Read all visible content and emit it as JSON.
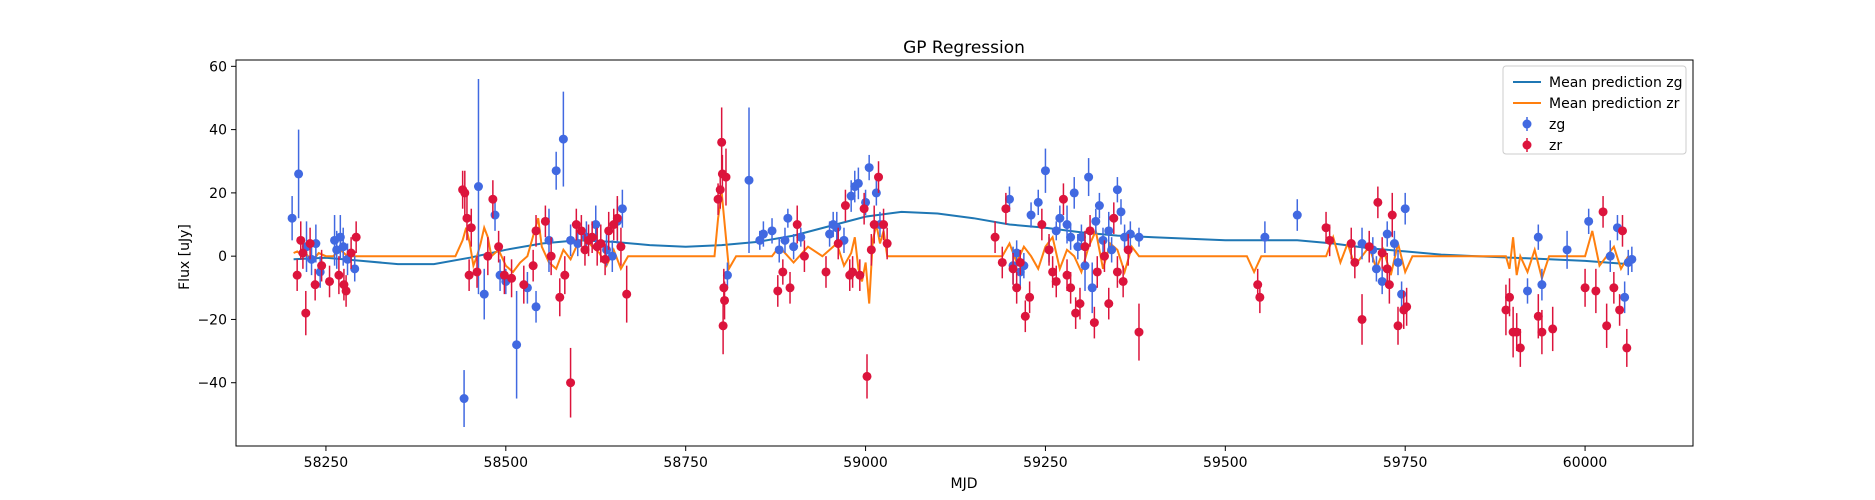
{
  "chart_data": {
    "type": "scatter",
    "title": "GP Regression",
    "xlabel": "MJD",
    "ylabel": "Flux [uJy]",
    "xlim": [
      58125,
      60150
    ],
    "ylim": [
      -60,
      62
    ],
    "xticks": [
      58250,
      58500,
      58750,
      59000,
      59250,
      59500,
      59750,
      60000
    ],
    "yticks": [
      -40,
      -20,
      0,
      20,
      40,
      60
    ],
    "grid": false,
    "legend_position": "top-right",
    "colors": {
      "zg_points": "#4169e1",
      "zr_points": "#dc143c",
      "zg_line": "#1f77b4",
      "zr_line": "#ff7f0e"
    },
    "legend": [
      {
        "label": "Mean prediction zg",
        "kind": "line",
        "color": "#1f77b4"
      },
      {
        "label": "Mean prediction zr",
        "kind": "line",
        "color": "#ff7f0e"
      },
      {
        "label": "zg",
        "kind": "point",
        "color": "#4169e1"
      },
      {
        "label": "zr",
        "kind": "point",
        "color": "#dc143c"
      }
    ],
    "series": [
      {
        "name": "Mean prediction zg",
        "kind": "line",
        "x": [
          58205,
          58250,
          58300,
          58350,
          58400,
          58450,
          58500,
          58550,
          58600,
          58650,
          58700,
          58750,
          58800,
          58850,
          58900,
          58950,
          59000,
          59050,
          59100,
          59150,
          59200,
          59250,
          59300,
          59350,
          59400,
          59450,
          59500,
          59550,
          59600,
          59650,
          59700,
          59750,
          59800,
          59850,
          59900,
          59950,
          60000,
          60060
        ],
        "y": [
          -1,
          -0.5,
          -1.5,
          -2.5,
          -2.5,
          -0.5,
          2,
          4,
          5,
          4.5,
          3.5,
          3,
          3.5,
          4.5,
          6.5,
          9.5,
          12.5,
          14,
          13.5,
          12,
          10,
          9,
          7.5,
          6.5,
          6,
          5.5,
          5,
          5,
          5,
          4,
          2.5,
          1.5,
          0.5,
          0,
          -0.5,
          -1,
          -1.5,
          -2.5
        ]
      },
      {
        "name": "Mean prediction zr",
        "kind": "line",
        "x": [
          58205,
          58210,
          58215,
          58220,
          58225,
          58230,
          58240,
          58250,
          58260,
          58270,
          58280,
          58290,
          58300,
          58350,
          58400,
          58430,
          58440,
          58445,
          58450,
          58455,
          58460,
          58465,
          58470,
          58475,
          58480,
          58490,
          58500,
          58510,
          58520,
          58530,
          58540,
          58545,
          58550,
          58560,
          58570,
          58580,
          58590,
          58600,
          58610,
          58620,
          58630,
          58640,
          58650,
          58660,
          58670,
          58700,
          58750,
          58790,
          58795,
          58800,
          58805,
          58810,
          58815,
          58820,
          58850,
          58870,
          58880,
          58900,
          58920,
          58940,
          58960,
          58970,
          58980,
          58985,
          58990,
          58995,
          59000,
          59005,
          59010,
          59015,
          59020,
          59025,
          59030,
          59040,
          59100,
          59150,
          59190,
          59200,
          59210,
          59220,
          59230,
          59240,
          59250,
          59260,
          59270,
          59280,
          59290,
          59300,
          59310,
          59320,
          59330,
          59340,
          59350,
          59360,
          59370,
          59380,
          59400,
          59500,
          59530,
          59540,
          59550,
          59600,
          59640,
          59650,
          59660,
          59670,
          59680,
          59690,
          59700,
          59710,
          59720,
          59730,
          59740,
          59750,
          59760,
          59800,
          59880,
          59890,
          59895,
          59900,
          59905,
          59910,
          59920,
          59930,
          59940,
          59950,
          59960,
          60000,
          60010,
          60020,
          60030,
          60040,
          60050,
          60060
        ],
        "y": [
          1,
          1.5,
          0.5,
          1.5,
          0,
          -2,
          1,
          0,
          0,
          2,
          0,
          0,
          0,
          0,
          0,
          0,
          5,
          9,
          4,
          -3,
          0,
          4,
          9,
          6,
          0,
          2,
          -3,
          -5,
          -2,
          0,
          8,
          12,
          3,
          -2,
          -4,
          2,
          -1,
          4,
          6,
          3,
          1,
          -3,
          2,
          -4,
          0,
          0,
          0,
          0,
          12,
          20,
          8,
          -4,
          -2,
          0,
          0,
          0,
          3,
          -2,
          3,
          0,
          4,
          -3,
          1,
          6,
          -4,
          -8,
          -2,
          -15,
          5,
          10,
          4,
          8,
          0,
          0,
          0,
          0,
          0,
          4,
          -2,
          3,
          0,
          -4,
          3,
          6,
          -4,
          2,
          0,
          -5,
          3,
          8,
          -4,
          4,
          2,
          -5,
          3,
          0,
          0,
          0,
          0,
          -5,
          0,
          0,
          0,
          6,
          -2,
          4,
          -3,
          0,
          3,
          -4,
          2,
          -6,
          4,
          -5,
          0,
          0,
          0,
          0,
          -4,
          6,
          -6,
          0,
          -5,
          2,
          -7,
          0,
          0,
          0,
          8,
          -3,
          0,
          3,
          -4,
          0
        ]
      },
      {
        "name": "zg",
        "kind": "point",
        "x": [
          58203,
          58212,
          58223,
          58230,
          58236,
          58242,
          58262,
          58265,
          58270,
          58274,
          58280,
          58290,
          58442,
          58462,
          58470,
          58485,
          58492,
          58500,
          58515,
          58530,
          58542,
          58560,
          58570,
          58580,
          58590,
          58600,
          58612,
          58625,
          58640,
          58648,
          58655,
          58662,
          58808,
          58838,
          58853,
          58858,
          58870,
          58880,
          58888,
          58892,
          58900,
          58910,
          58950,
          58955,
          58960,
          58970,
          58980,
          58985,
          58990,
          59000,
          59005,
          59015,
          59020,
          59200,
          59205,
          59210,
          59215,
          59220,
          59230,
          59240,
          59250,
          59255,
          59265,
          59270,
          59280,
          59285,
          59290,
          59295,
          59300,
          59305,
          59310,
          59315,
          59320,
          59325,
          59330,
          59338,
          59342,
          59350,
          59355,
          59360,
          59368,
          59380,
          59555,
          59600,
          59690,
          59705,
          59710,
          59718,
          59725,
          59735,
          59740,
          59745,
          59750,
          59920,
          59935,
          59940,
          59975,
          60005,
          60035,
          60045,
          60055,
          60060,
          60065
        ],
        "y": [
          12,
          26,
          3,
          -1,
          4,
          -5,
          5,
          2,
          6,
          3,
          -1,
          -4,
          -45,
          22,
          -12,
          13,
          -6,
          -8,
          -28,
          -10,
          -16,
          5,
          27,
          37,
          5,
          4,
          6,
          10,
          2,
          0,
          11,
          15,
          -6,
          24,
          5,
          7,
          8,
          2,
          5,
          12,
          3,
          6,
          7,
          10,
          9,
          5,
          19,
          22,
          23,
          17,
          28,
          20,
          10,
          18,
          -3,
          1,
          -5,
          -3,
          13,
          17,
          27,
          2,
          8,
          12,
          10,
          6,
          20,
          3,
          6,
          -3,
          25,
          -10,
          11,
          16,
          5,
          8,
          2,
          21,
          14,
          6,
          7,
          6,
          6,
          13,
          4,
          2,
          -4,
          -8,
          7,
          4,
          -2,
          -12,
          15,
          -11,
          6,
          -9,
          2,
          11,
          0,
          9,
          -13,
          -2,
          -1
        ],
        "err": [
          7,
          14,
          8,
          5,
          6,
          5,
          8,
          6,
          7,
          6,
          5,
          4,
          9,
          34,
          8,
          5,
          5,
          4,
          17,
          5,
          5,
          10,
          6,
          15,
          5,
          4,
          5,
          6,
          5,
          5,
          7,
          6,
          4,
          23,
          3,
          4,
          4,
          4,
          4,
          3,
          4,
          3,
          4,
          4,
          5,
          4,
          5,
          5,
          5,
          4,
          4,
          4,
          4,
          4,
          6,
          4,
          5,
          4,
          4,
          4,
          7,
          4,
          3,
          4,
          6,
          4,
          5,
          4,
          4,
          8,
          6,
          8,
          4,
          4,
          4,
          6,
          4,
          4,
          4,
          4,
          4,
          3,
          5,
          5,
          5,
          4,
          4,
          4,
          4,
          4,
          4,
          4,
          5,
          4,
          4,
          5,
          6,
          4,
          5,
          4,
          5,
          4,
          4
        ]
      },
      {
        "name": "zr",
        "kind": "point",
        "x": [
          58210,
          58215,
          58218,
          58222,
          58228,
          58235,
          58244,
          58255,
          58268,
          58275,
          58278,
          58285,
          58292,
          58440,
          58443,
          58446,
          58449,
          58452,
          58460,
          58475,
          58482,
          58490,
          58498,
          58508,
          58525,
          58538,
          58542,
          58555,
          58563,
          58575,
          58582,
          58590,
          58598,
          58605,
          58610,
          58615,
          58620,
          58627,
          58632,
          58638,
          58643,
          58650,
          58655,
          58660,
          58668,
          58795,
          58798,
          58800,
          58801,
          58802,
          58803,
          58804,
          58806,
          58878,
          58885,
          58895,
          58905,
          58915,
          58945,
          58962,
          58972,
          58978,
          58982,
          58992,
          58998,
          59002,
          59008,
          59012,
          59018,
          59025,
          59030,
          59180,
          59190,
          59195,
          59205,
          59210,
          59215,
          59222,
          59228,
          59245,
          59255,
          59260,
          59265,
          59275,
          59280,
          59285,
          59292,
          59298,
          59305,
          59312,
          59318,
          59322,
          59332,
          59338,
          59345,
          59350,
          59358,
          59365,
          59380,
          59545,
          59548,
          59640,
          59645,
          59675,
          59680,
          59690,
          59700,
          59712,
          59718,
          59725,
          59728,
          59732,
          59740,
          59748,
          59752,
          59890,
          59895,
          59900,
          59905,
          59910,
          59935,
          59940,
          59955,
          60000,
          60015,
          60025,
          60030,
          60040,
          60048,
          60052,
          60058
        ],
        "y": [
          -6,
          5,
          1,
          -18,
          4,
          -9,
          -3,
          -8,
          -6,
          -9,
          -11,
          1,
          6,
          21,
          20,
          12,
          -6,
          9,
          -5,
          0,
          18,
          3,
          -6,
          -7,
          -9,
          -3,
          8,
          11,
          0,
          -13,
          -6,
          -40,
          10,
          8,
          2,
          5,
          6,
          3,
          4,
          -1,
          8,
          10,
          12,
          3,
          -12,
          18,
          21,
          36,
          26,
          -22,
          -10,
          -14,
          25,
          -11,
          -5,
          -10,
          10,
          0,
          -5,
          4,
          16,
          -6,
          -5,
          -6,
          15,
          -38,
          2,
          10,
          25,
          10,
          4,
          6,
          -2,
          15,
          -4,
          -10,
          -2,
          -19,
          -13,
          10,
          2,
          -5,
          -8,
          18,
          -6,
          -10,
          -18,
          -15,
          3,
          8,
          -21,
          -5,
          0,
          -15,
          12,
          -5,
          -8,
          2,
          -24,
          -9,
          -13,
          9,
          5,
          4,
          -2,
          -20,
          3,
          17,
          1,
          -4,
          -9,
          13,
          -22,
          -17,
          -16,
          -17,
          -13,
          -24,
          -24,
          -29,
          -19,
          -24,
          -23,
          -10,
          -11,
          14,
          -22,
          -10,
          -17,
          8,
          -29
        ],
        "err": [
          5,
          6,
          5,
          7,
          5,
          5,
          5,
          5,
          6,
          5,
          5,
          5,
          5,
          6,
          7,
          7,
          5,
          6,
          5,
          6,
          6,
          5,
          6,
          6,
          6,
          5,
          5,
          5,
          6,
          6,
          6,
          11,
          5,
          5,
          5,
          5,
          5,
          6,
          6,
          5,
          6,
          5,
          7,
          6,
          9,
          5,
          6,
          11,
          6,
          9,
          6,
          6,
          9,
          5,
          4,
          5,
          6,
          5,
          5,
          5,
          5,
          5,
          5,
          5,
          5,
          7,
          5,
          6,
          5,
          5,
          5,
          5,
          5,
          5,
          5,
          5,
          4,
          5,
          5,
          5,
          5,
          5,
          5,
          5,
          5,
          5,
          5,
          5,
          5,
          5,
          5,
          5,
          5,
          5,
          5,
          5,
          5,
          5,
          9,
          5,
          5,
          5,
          5,
          5,
          5,
          8,
          5,
          5,
          5,
          5,
          6,
          7,
          6,
          6,
          6,
          8,
          6,
          8,
          6,
          6,
          7,
          7,
          7,
          6,
          7,
          5,
          7,
          5,
          5,
          5,
          6
        ]
      }
    ]
  }
}
